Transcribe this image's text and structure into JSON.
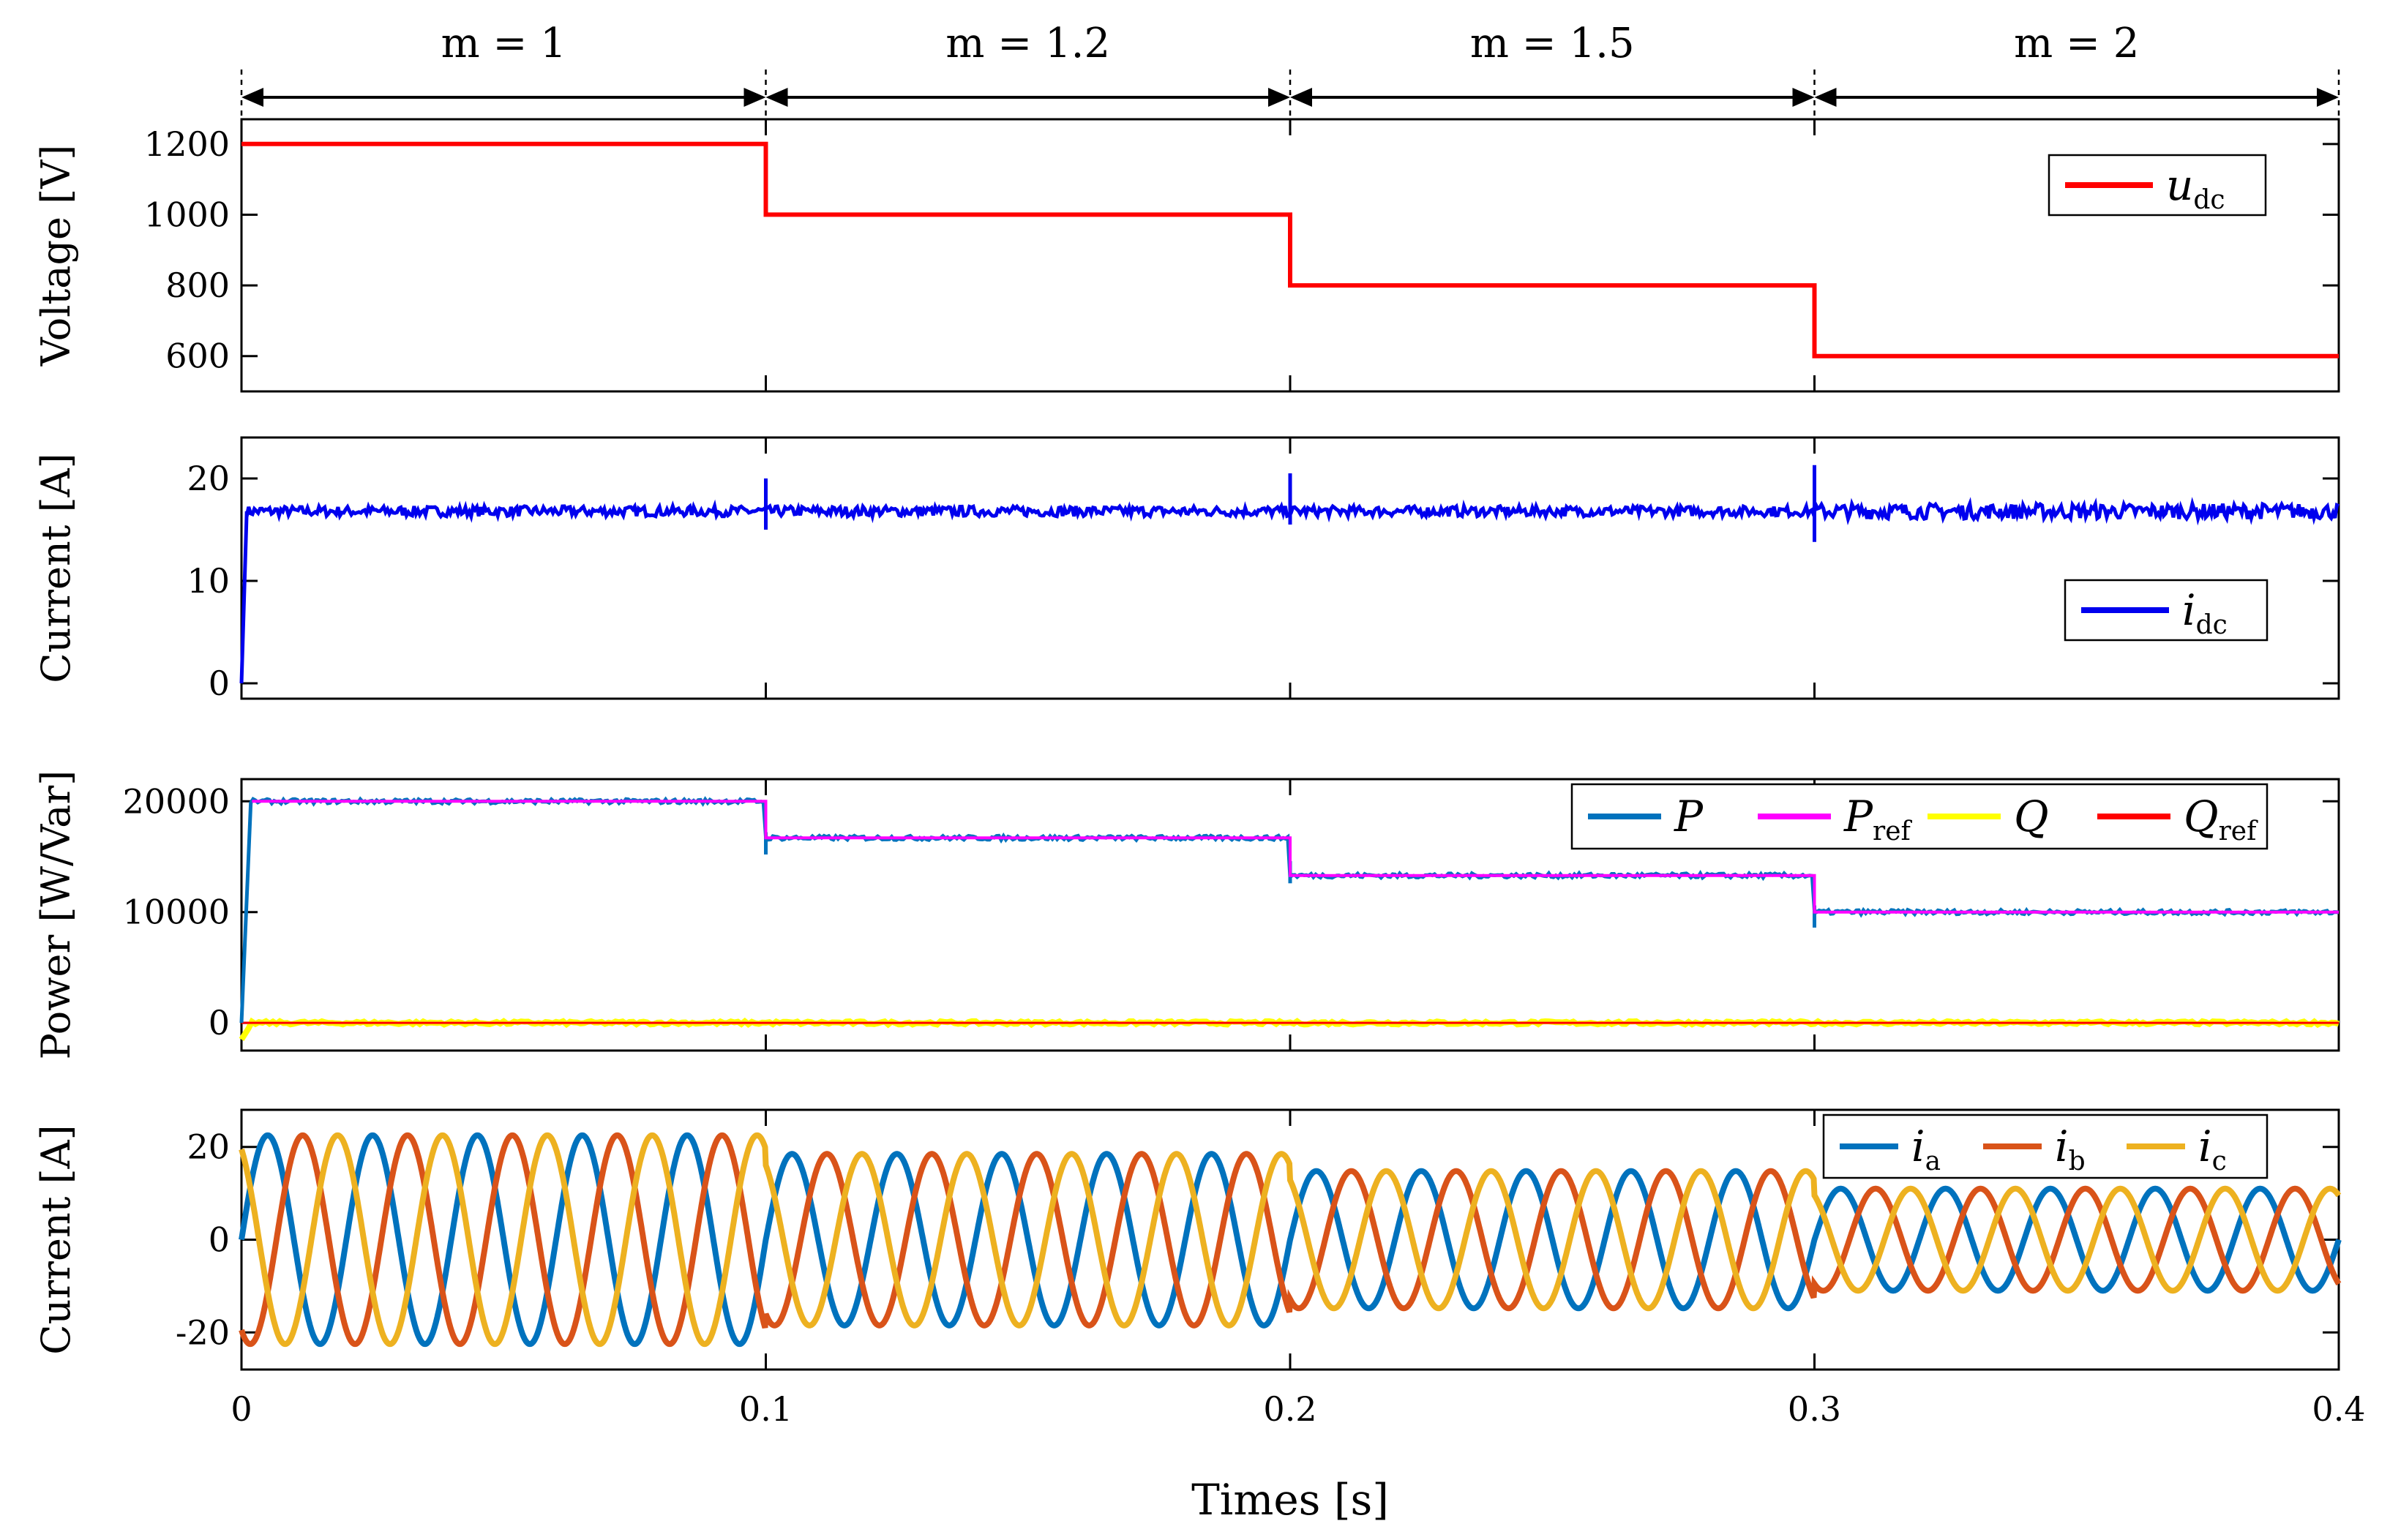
{
  "chart_data": [
    {
      "type": "line",
      "id": "voltage",
      "ylabel": "Voltage [V]",
      "xlim": [
        0,
        0.4
      ],
      "ylim": [
        500,
        1270
      ],
      "yticks": [
        600,
        800,
        1000,
        1200
      ],
      "ytick_labels": [
        "600",
        "800",
        "1000",
        "1200"
      ],
      "grid": false,
      "legend_position": "top-right",
      "series": [
        {
          "name": "u_dc",
          "legend_main": "u",
          "legend_sub": "dc",
          "color": "#ff0000",
          "shape": "step",
          "x": [
            0,
            0.1,
            0.1,
            0.2,
            0.2,
            0.3,
            0.3,
            0.4
          ],
          "y": [
            1200,
            1200,
            1000,
            1000,
            800,
            800,
            600,
            600
          ]
        }
      ]
    },
    {
      "type": "line",
      "id": "dc-current",
      "ylabel": "Current [A]",
      "xlim": [
        0,
        0.4
      ],
      "ylim": [
        -1.5,
        24
      ],
      "yticks": [
        0,
        10,
        20
      ],
      "ytick_labels": [
        "0",
        "10",
        "20"
      ],
      "grid": false,
      "legend_position": "middle-right",
      "series": [
        {
          "name": "i_dc",
          "legend_main": "i",
          "legend_sub": "dc",
          "color": "#0000ee",
          "shape": "noisy-constant",
          "steady_value": 16.8,
          "ripple": 0.5,
          "rise_time": 0.001,
          "spikes": [
            {
              "x": 0.1,
              "min": 15.0,
              "max": 20.0
            },
            {
              "x": 0.2,
              "min": 15.5,
              "max": 20.5
            },
            {
              "x": 0.3,
              "min": 13.8,
              "max": 21.3
            }
          ]
        }
      ]
    },
    {
      "type": "line",
      "id": "power",
      "ylabel": "Power [W/Var]",
      "xlim": [
        0,
        0.4
      ],
      "ylim": [
        -2500,
        22000
      ],
      "yticks": [
        0,
        10000,
        20000
      ],
      "ytick_labels": [
        "0",
        "10000",
        "20000"
      ],
      "grid": false,
      "legend_position": "top-right",
      "series": [
        {
          "name": "P",
          "legend_main": "P",
          "legend_sub": "",
          "color": "#0072bd",
          "shape": "noisy-step",
          "x": [
            0,
            0.1,
            0.2,
            0.3,
            0.4
          ],
          "levels": [
            20000,
            16700,
            13300,
            10000
          ]
        },
        {
          "name": "P_ref",
          "legend_main": "P",
          "legend_sub": "ref",
          "color": "#ff00ff",
          "shape": "step",
          "x": [
            0,
            0.1,
            0.2,
            0.3,
            0.4
          ],
          "levels": [
            20000,
            16700,
            13300,
            10000
          ]
        },
        {
          "name": "Q",
          "legend_main": "Q",
          "legend_sub": "",
          "color": "#ffff00",
          "shape": "constant",
          "value": 0
        },
        {
          "name": "Q_ref",
          "legend_main": "Q",
          "legend_sub": "ref",
          "color": "#ff0000",
          "shape": "constant",
          "value": 0
        }
      ]
    },
    {
      "type": "line",
      "id": "ac-current",
      "ylabel": "Current [A]",
      "xlabel": "Times [s]",
      "xlim": [
        0,
        0.4
      ],
      "ylim": [
        -28,
        28
      ],
      "yticks": [
        -20,
        0,
        20
      ],
      "ytick_labels": [
        "-20",
        "0",
        "20"
      ],
      "xticks": [
        0,
        0.1,
        0.2,
        0.3,
        0.4
      ],
      "xtick_labels": [
        "0",
        "0.1",
        "0.2",
        "0.3",
        "0.4"
      ],
      "grid": false,
      "legend_position": "top-right",
      "frequency_hz": 50,
      "amplitude_segments": [
        {
          "x0": 0.0,
          "x1": 0.1,
          "amplitude": 22.5
        },
        {
          "x0": 0.1,
          "x1": 0.2,
          "amplitude": 18.5
        },
        {
          "x0": 0.2,
          "x1": 0.3,
          "amplitude": 14.8
        },
        {
          "x0": 0.3,
          "x1": 0.4,
          "amplitude": 11.0
        }
      ],
      "series": [
        {
          "name": "i_a",
          "legend_main": "i",
          "legend_sub": "a",
          "color": "#0072bd",
          "phase_deg": 0
        },
        {
          "name": "i_b",
          "legend_main": "i",
          "legend_sub": "b",
          "color": "#d95319",
          "phase_deg": -120
        },
        {
          "name": "i_c",
          "legend_main": "i",
          "legend_sub": "c",
          "color": "#edb120",
          "phase_deg": 120
        }
      ]
    }
  ],
  "annotation": {
    "segments": [
      {
        "x0": 0.0,
        "x1": 0.1,
        "label": "m = 1"
      },
      {
        "x0": 0.1,
        "x1": 0.2,
        "label": "m = 1.2"
      },
      {
        "x0": 0.2,
        "x1": 0.3,
        "label": "m = 1.5"
      },
      {
        "x0": 0.3,
        "x1": 0.4,
        "label": "m = 2"
      }
    ]
  }
}
